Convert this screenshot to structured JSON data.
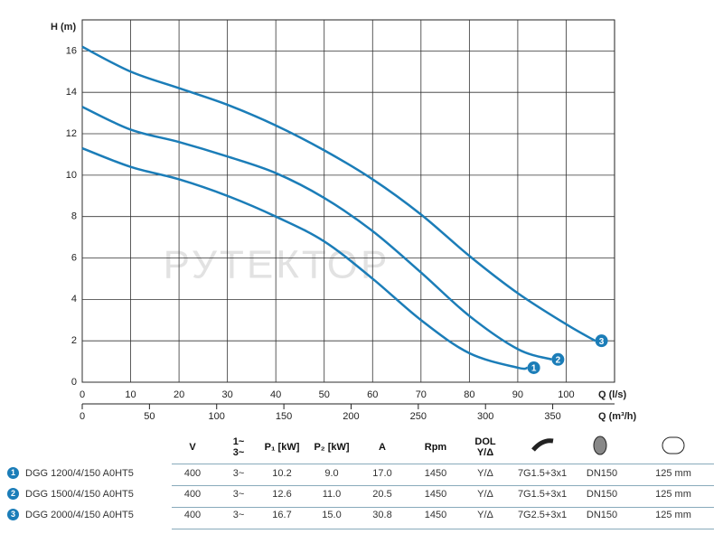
{
  "chart_data": {
    "type": "line",
    "ylabel": "H (m)",
    "xlabel": "Q (l/s)",
    "x2label": "Q (m³/h)",
    "watermark": "РУТЕКТОР",
    "xlim": [
      0,
      110
    ],
    "xticks": [
      0,
      10,
      20,
      30,
      40,
      50,
      60,
      70,
      80,
      90,
      100
    ],
    "x2lim": [
      0,
      396
    ],
    "x2ticks": [
      0,
      50,
      100,
      150,
      200,
      250,
      300,
      350
    ],
    "ylim": [
      0,
      17.5
    ],
    "yticks": [
      0,
      2,
      4,
      6,
      8,
      10,
      12,
      14,
      16
    ],
    "grid": true,
    "series": [
      {
        "name": "1",
        "color": "#1b7db8",
        "x": [
          0,
          10,
          20,
          30,
          40,
          50,
          60,
          70,
          80,
          90,
          92
        ],
        "values": [
          11.3,
          10.4,
          9.8,
          9.0,
          8.0,
          6.8,
          5.0,
          3.0,
          1.4,
          0.7,
          0.7
        ]
      },
      {
        "name": "2",
        "color": "#1b7db8",
        "x": [
          0,
          10,
          20,
          30,
          40,
          50,
          60,
          70,
          80,
          90,
          97
        ],
        "values": [
          13.3,
          12.2,
          11.6,
          10.9,
          10.1,
          8.9,
          7.3,
          5.3,
          3.2,
          1.6,
          1.1
        ]
      },
      {
        "name": "3",
        "color": "#1b7db8",
        "x": [
          0,
          10,
          20,
          30,
          40,
          50,
          60,
          70,
          80,
          90,
          100,
          106
        ],
        "values": [
          16.2,
          15.0,
          14.2,
          13.4,
          12.4,
          11.2,
          9.8,
          8.1,
          6.1,
          4.3,
          2.8,
          2.0
        ]
      }
    ]
  },
  "table": {
    "header": [
      "V",
      "1~\n3~",
      "P₁ [kW]",
      "P₂ [kW]",
      "A",
      "Rpm",
      "DOL\nY/Δ"
    ],
    "rows": [
      [
        "1",
        "DGG 1200/4/150 A0HT5",
        "400",
        "3~",
        "10.2",
        "9.0",
        "17.0",
        "1450",
        "Y/Δ",
        "7G1.5+3x1",
        "DN150",
        "125 mm"
      ],
      [
        "2",
        "DGG 1500/4/150 A0HT5",
        "400",
        "3~",
        "12.6",
        "11.0",
        "20.5",
        "1450",
        "Y/Δ",
        "7G1.5+3x1",
        "DN150",
        "125 mm"
      ],
      [
        "3",
        "DGG 2000/4/150 A0HT5",
        "400",
        "3~",
        "16.7",
        "15.0",
        "30.8",
        "1450",
        "Y/Δ",
        "7G2.5+3x1",
        "DN150",
        "125 mm"
      ]
    ]
  }
}
